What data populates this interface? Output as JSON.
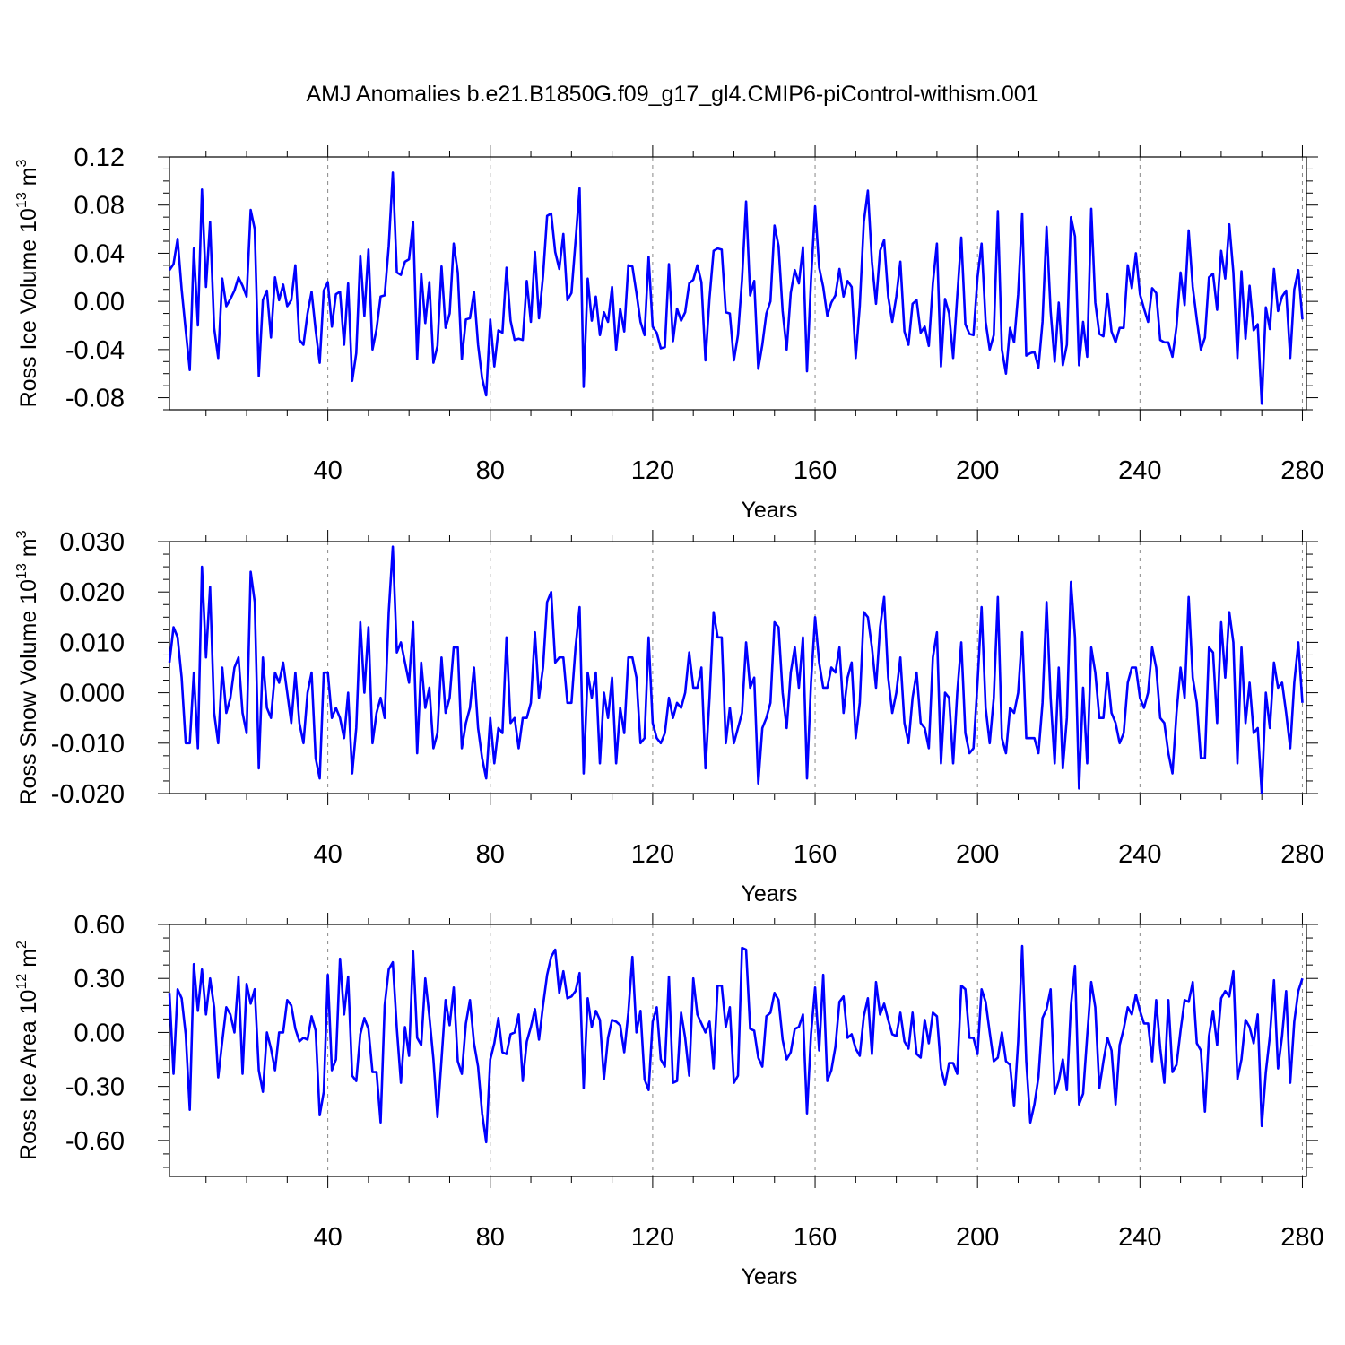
{
  "figure": {
    "title": "AMJ Anomalies b.e21.B1850G.f09_g17_gl4.CMIP6-piControl-withism.001"
  },
  "colors": {
    "line": "#0000ff",
    "axis": "#000000",
    "grid": "#888888",
    "background": "#ffffff"
  },
  "chart_data": [
    {
      "type": "line",
      "ylabel": {
        "base": "Ross Ice Volume 10",
        "exp": "13",
        "unit": " m",
        "unit_exp": "3"
      },
      "xlabel": "Years",
      "xlim": [
        1,
        281
      ],
      "ylim": [
        -0.09,
        0.12
      ],
      "xticks": [
        40,
        80,
        120,
        160,
        200,
        240,
        280
      ],
      "xtick_labels": [
        "40",
        "80",
        "120",
        "160",
        "200",
        "240",
        "280"
      ],
      "yticks": [
        0.12,
        0.08,
        0.04,
        0.0,
        -0.04,
        -0.08
      ],
      "ytick_labels": [
        "0.12",
        "0.08",
        "0.04",
        "0.00",
        "-0.04",
        "-0.08"
      ],
      "grid": "vertical dashed at major x ticks",
      "series": [
        {
          "values": [
            0.026,
            0.031,
            0.052,
            0.01,
            -0.024,
            -0.057,
            0.044,
            -0.02,
            0.093,
            0.012,
            0.066,
            -0.022,
            -0.047,
            0.019,
            -0.004,
            0.002,
            0.009,
            0.02,
            0.013,
            0.004,
            0.076,
            0.06,
            -0.062,
            0.001,
            0.009,
            -0.03,
            0.02,
            0.001,
            0.014,
            -0.004,
            0.001,
            0.03,
            -0.032,
            -0.036,
            -0.01,
            0.008,
            -0.024,
            -0.051,
            0.009,
            0.016,
            -0.021,
            0.006,
            0.008,
            -0.036,
            0.015,
            -0.066,
            -0.043,
            0.038,
            -0.012,
            0.043,
            -0.04,
            -0.023,
            0.004,
            0.005,
            0.046,
            0.107,
            0.024,
            0.022,
            0.033,
            0.035,
            0.066,
            -0.048,
            0.023,
            -0.018,
            0.016,
            -0.051,
            -0.037,
            0.029,
            -0.022,
            -0.01,
            0.048,
            0.024,
            -0.048,
            -0.015,
            -0.014,
            0.008,
            -0.036,
            -0.064,
            -0.078,
            -0.015,
            -0.054,
            -0.024,
            -0.026,
            0.028,
            -0.016,
            -0.032,
            -0.031,
            -0.032,
            0.017,
            -0.017,
            0.041,
            -0.014,
            0.021,
            0.071,
            0.073,
            0.041,
            0.027,
            0.056,
            0.001,
            0.007,
            0.05,
            0.094,
            -0.071,
            0.019,
            -0.016,
            0.004,
            -0.028,
            -0.009,
            -0.017,
            0.012,
            -0.04,
            -0.006,
            -0.025,
            0.03,
            0.029,
            0.007,
            -0.017,
            -0.028,
            0.037,
            -0.021,
            -0.026,
            -0.039,
            -0.038,
            0.031,
            -0.033,
            -0.006,
            -0.016,
            -0.009,
            0.015,
            0.018,
            0.03,
            0.016,
            -0.049,
            0.003,
            0.042,
            0.044,
            0.043,
            -0.009,
            -0.01,
            -0.049,
            -0.028,
            0.018,
            0.083,
            0.005,
            0.017,
            -0.056,
            -0.036,
            -0.01,
            0.0,
            0.063,
            0.046,
            -0.008,
            -0.04,
            0.007,
            0.026,
            0.015,
            0.045,
            -0.058,
            0.018,
            0.079,
            0.028,
            0.012,
            -0.012,
            -0.001,
            0.005,
            0.027,
            0.004,
            0.017,
            0.012,
            -0.047,
            -0.004,
            0.066,
            0.092,
            0.033,
            -0.002,
            0.042,
            0.051,
            0.004,
            -0.017,
            0.004,
            0.033,
            -0.025,
            -0.036,
            -0.002,
            0.001,
            -0.026,
            -0.021,
            -0.037,
            0.015,
            0.048,
            -0.054,
            0.002,
            -0.01,
            -0.047,
            0.004,
            0.053,
            -0.019,
            -0.027,
            -0.028,
            0.02,
            0.048,
            -0.017,
            -0.04,
            -0.028,
            0.075,
            -0.04,
            -0.06,
            -0.022,
            -0.034,
            0.006,
            0.073,
            -0.045,
            -0.043,
            -0.042,
            -0.055,
            -0.017,
            0.062,
            -0.008,
            -0.05,
            -0.001,
            -0.053,
            -0.036,
            0.07,
            0.054,
            -0.053,
            -0.017,
            -0.046,
            0.077,
            -0.001,
            -0.027,
            -0.029,
            0.006,
            -0.025,
            -0.034,
            -0.022,
            -0.022,
            0.03,
            0.011,
            0.04,
            0.006,
            -0.006,
            -0.017,
            0.011,
            0.007,
            -0.032,
            -0.034,
            -0.034,
            -0.046,
            -0.021,
            0.024,
            -0.003,
            0.059,
            0.012,
            -0.015,
            -0.04,
            -0.03,
            0.02,
            0.023,
            -0.007,
            0.042,
            0.019,
            0.064,
            0.024,
            -0.047,
            0.025,
            -0.031,
            0.013,
            -0.024,
            -0.019,
            -0.085,
            -0.005,
            -0.023,
            0.027,
            -0.008,
            0.004,
            0.009,
            -0.047,
            0.01,
            0.026,
            -0.015
          ]
        }
      ]
    },
    {
      "type": "line",
      "ylabel": {
        "base": "Ross Snow Volume 10",
        "exp": "13",
        "unit": " m",
        "unit_exp": "3"
      },
      "xlabel": "Years",
      "xlim": [
        1,
        281
      ],
      "ylim": [
        -0.02,
        0.03
      ],
      "xticks": [
        40,
        80,
        120,
        160,
        200,
        240,
        280
      ],
      "xtick_labels": [
        "40",
        "80",
        "120",
        "160",
        "200",
        "240",
        "280"
      ],
      "yticks": [
        0.03,
        0.02,
        0.01,
        0.0,
        -0.01,
        -0.02
      ],
      "ytick_labels": [
        "0.030",
        "0.020",
        "0.010",
        "0.000",
        "-0.010",
        "-0.020"
      ],
      "grid": "vertical dashed at major x ticks",
      "series": [
        {
          "values": [
            0.006,
            0.013,
            0.011,
            0.003,
            -0.01,
            -0.01,
            0.004,
            -0.011,
            0.025,
            0.007,
            0.021,
            -0.004,
            -0.01,
            0.005,
            -0.004,
            -0.001,
            0.005,
            0.007,
            -0.004,
            -0.008,
            0.024,
            0.018,
            -0.015,
            0.007,
            -0.003,
            -0.005,
            0.004,
            0.002,
            0.006,
            0.0,
            -0.006,
            0.004,
            -0.006,
            -0.01,
            0.0,
            0.004,
            -0.013,
            -0.017,
            0.004,
            0.004,
            -0.005,
            -0.003,
            -0.005,
            -0.009,
            0.0,
            -0.016,
            -0.007,
            0.014,
            0.0,
            0.013,
            -0.01,
            -0.004,
            -0.001,
            -0.005,
            0.016,
            0.029,
            0.008,
            0.01,
            0.006,
            0.002,
            0.014,
            -0.012,
            0.006,
            -0.003,
            0.001,
            -0.011,
            -0.008,
            0.007,
            -0.004,
            -0.001,
            0.009,
            0.009,
            -0.011,
            -0.006,
            -0.003,
            0.005,
            -0.007,
            -0.013,
            -0.017,
            -0.005,
            -0.014,
            -0.007,
            -0.008,
            0.011,
            -0.006,
            -0.005,
            -0.011,
            -0.005,
            -0.005,
            -0.002,
            0.012,
            -0.001,
            0.005,
            0.018,
            0.02,
            0.006,
            0.007,
            0.007,
            -0.002,
            -0.002,
            0.009,
            0.017,
            -0.016,
            0.004,
            -0.001,
            0.004,
            -0.014,
            0.0,
            -0.005,
            0.003,
            -0.014,
            -0.003,
            -0.008,
            0.007,
            0.007,
            0.003,
            -0.01,
            -0.009,
            0.011,
            -0.006,
            -0.009,
            -0.01,
            -0.008,
            -0.001,
            -0.005,
            -0.002,
            -0.003,
            0.0,
            0.008,
            0.001,
            0.001,
            0.005,
            -0.015,
            -0.001,
            0.016,
            0.011,
            0.011,
            -0.01,
            -0.003,
            -0.01,
            -0.007,
            -0.004,
            0.01,
            0.001,
            0.003,
            -0.018,
            -0.007,
            -0.005,
            -0.002,
            0.014,
            0.013,
            0.0,
            -0.007,
            0.004,
            0.009,
            0.001,
            0.011,
            -0.017,
            0.002,
            0.015,
            0.006,
            0.001,
            0.001,
            0.005,
            0.004,
            0.009,
            -0.004,
            0.003,
            0.006,
            -0.009,
            -0.002,
            0.016,
            0.015,
            0.009,
            0.001,
            0.013,
            0.019,
            0.003,
            -0.004,
            0.0,
            0.007,
            -0.006,
            -0.01,
            -0.001,
            0.004,
            -0.006,
            -0.007,
            -0.011,
            0.007,
            0.012,
            -0.014,
            0.0,
            -0.001,
            -0.014,
            0.0,
            0.01,
            -0.008,
            -0.012,
            -0.011,
            0.002,
            0.017,
            -0.003,
            -0.01,
            -0.001,
            0.019,
            -0.009,
            -0.012,
            -0.003,
            -0.004,
            0.0,
            0.012,
            -0.009,
            -0.009,
            -0.009,
            -0.012,
            -0.002,
            0.018,
            -0.001,
            -0.014,
            0.005,
            -0.015,
            -0.005,
            0.022,
            0.011,
            -0.019,
            0.001,
            -0.014,
            0.009,
            0.004,
            -0.005,
            -0.005,
            0.004,
            -0.004,
            -0.006,
            -0.01,
            -0.008,
            0.002,
            0.005,
            0.005,
            -0.001,
            -0.003,
            0.0,
            0.009,
            0.005,
            -0.005,
            -0.006,
            -0.012,
            -0.016,
            -0.004,
            0.005,
            -0.001,
            0.019,
            0.003,
            -0.002,
            -0.013,
            -0.013,
            0.009,
            0.008,
            -0.006,
            0.014,
            0.003,
            0.016,
            0.01,
            -0.014,
            0.009,
            -0.006,
            0.002,
            -0.008,
            -0.007,
            -0.02,
            0.0,
            -0.007,
            0.006,
            0.001,
            0.002,
            -0.004,
            -0.011,
            0.002,
            0.01,
            -0.002
          ]
        }
      ]
    },
    {
      "type": "line",
      "ylabel": {
        "base": "Ross Ice Area 10",
        "exp": "12",
        "unit": " m",
        "unit_exp": "2"
      },
      "xlabel": "Years",
      "xlim": [
        1,
        281
      ],
      "ylim": [
        -0.8,
        0.6
      ],
      "xticks": [
        40,
        80,
        120,
        160,
        200,
        240,
        280
      ],
      "xtick_labels": [
        "40",
        "80",
        "120",
        "160",
        "200",
        "240",
        "280"
      ],
      "yticks": [
        0.6,
        0.3,
        0.0,
        -0.3,
        -0.6
      ],
      "ytick_labels": [
        "0.60",
        "0.30",
        "0.00",
        "-0.30",
        "-0.60"
      ],
      "grid": "vertical dashed at major x ticks",
      "series": [
        {
          "values": [
            0.22,
            -0.23,
            0.24,
            0.19,
            -0.01,
            -0.43,
            0.38,
            0.12,
            0.35,
            0.1,
            0.3,
            0.14,
            -0.25,
            -0.05,
            0.14,
            0.1,
            0.0,
            0.31,
            -0.23,
            0.27,
            0.16,
            0.24,
            -0.21,
            -0.33,
            0.0,
            -0.09,
            -0.21,
            0.0,
            0.0,
            0.18,
            0.15,
            0.02,
            -0.05,
            -0.03,
            -0.04,
            0.09,
            0.01,
            -0.46,
            -0.33,
            0.32,
            -0.21,
            -0.15,
            0.41,
            0.1,
            0.31,
            -0.24,
            -0.27,
            -0.01,
            0.08,
            0.02,
            -0.22,
            -0.22,
            -0.5,
            0.15,
            0.35,
            0.39,
            0.02,
            -0.28,
            0.03,
            -0.13,
            0.45,
            -0.03,
            -0.07,
            0.3,
            0.09,
            -0.15,
            -0.47,
            -0.15,
            0.18,
            0.04,
            0.25,
            -0.16,
            -0.23,
            0.05,
            0.18,
            -0.06,
            -0.19,
            -0.45,
            -0.61,
            -0.15,
            -0.06,
            0.08,
            -0.11,
            -0.12,
            -0.01,
            0.0,
            0.1,
            -0.27,
            -0.05,
            0.03,
            0.13,
            -0.04,
            0.15,
            0.32,
            0.42,
            0.46,
            0.22,
            0.34,
            0.19,
            0.2,
            0.23,
            0.33,
            -0.31,
            0.19,
            0.03,
            0.12,
            0.07,
            -0.26,
            -0.03,
            0.07,
            0.06,
            0.04,
            -0.11,
            0.11,
            0.42,
            0.0,
            0.12,
            -0.26,
            -0.32,
            0.06,
            0.14,
            -0.15,
            -0.19,
            0.31,
            -0.28,
            -0.27,
            0.11,
            -0.03,
            -0.24,
            0.3,
            0.1,
            0.05,
            0.0,
            0.06,
            -0.2,
            0.26,
            0.26,
            0.03,
            0.14,
            -0.28,
            -0.24,
            0.47,
            0.46,
            0.02,
            0.01,
            -0.14,
            -0.19,
            0.09,
            0.11,
            0.22,
            0.18,
            -0.04,
            -0.15,
            -0.11,
            0.02,
            0.03,
            0.1,
            -0.45,
            -0.01,
            0.25,
            -0.1,
            0.32,
            -0.27,
            -0.21,
            -0.08,
            0.17,
            0.2,
            -0.03,
            -0.01,
            -0.09,
            -0.13,
            0.09,
            0.19,
            -0.12,
            0.28,
            0.1,
            0.16,
            0.07,
            -0.01,
            -0.02,
            0.11,
            -0.05,
            -0.09,
            0.11,
            -0.12,
            -0.14,
            0.07,
            -0.06,
            0.11,
            0.09,
            -0.2,
            -0.29,
            -0.17,
            -0.17,
            -0.23,
            0.26,
            0.24,
            -0.03,
            -0.03,
            -0.12,
            0.24,
            0.17,
            0.0,
            -0.16,
            -0.14,
            0.0,
            -0.16,
            -0.18,
            -0.41,
            -0.05,
            0.48,
            -0.16,
            -0.5,
            -0.4,
            -0.25,
            0.08,
            0.13,
            0.24,
            -0.34,
            -0.27,
            -0.15,
            -0.32,
            0.15,
            0.37,
            -0.4,
            -0.34,
            -0.02,
            0.28,
            0.14,
            -0.31,
            -0.16,
            -0.03,
            -0.1,
            -0.4,
            -0.07,
            0.02,
            0.14,
            0.1,
            0.21,
            0.12,
            0.05,
            0.05,
            -0.16,
            0.18,
            -0.09,
            -0.28,
            0.18,
            -0.22,
            -0.18,
            0.01,
            0.18,
            0.17,
            0.28,
            -0.06,
            -0.1,
            -0.44,
            -0.02,
            0.12,
            -0.07,
            0.19,
            0.23,
            0.2,
            0.34,
            -0.26,
            -0.15,
            0.07,
            0.03,
            -0.06,
            0.1,
            -0.52,
            -0.22,
            -0.02,
            0.29,
            -0.2,
            -0.02,
            0.23,
            -0.28,
            0.06,
            0.23,
            0.3
          ]
        }
      ]
    }
  ]
}
